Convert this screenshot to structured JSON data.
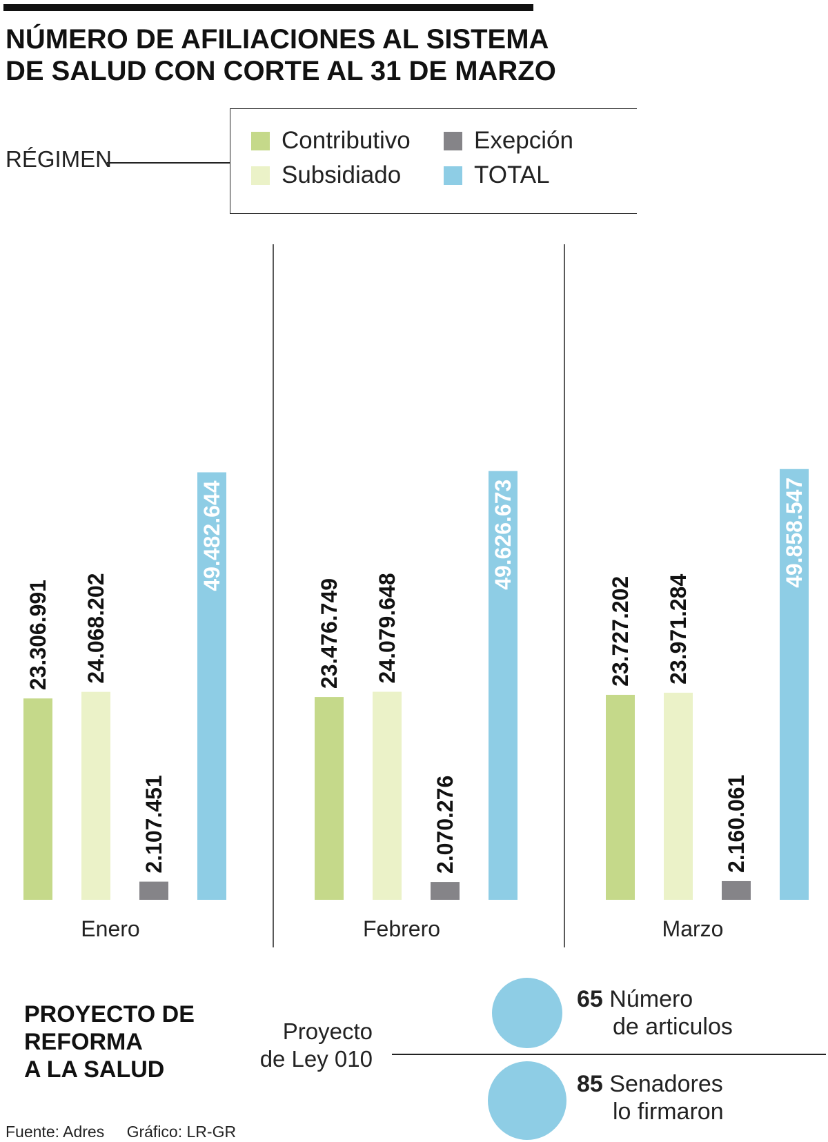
{
  "title_lines": [
    "NÚMERO DE AFILIACIONES AL SISTEMA",
    "DE SALUD CON CORTE AL 31 DE MARZO"
  ],
  "legend_title": "RÉGIMEN",
  "legend": [
    {
      "label": "Contributivo",
      "color": "#c5d98a"
    },
    {
      "label": "Subsidiado",
      "color": "#ebf2c8"
    },
    {
      "label": "Exepción",
      "color": "#858488"
    },
    {
      "label": "TOTAL",
      "color": "#8ecde5"
    }
  ],
  "chart_data": {
    "type": "bar",
    "categories": [
      "Enero",
      "Febrero",
      "Marzo"
    ],
    "series": [
      {
        "name": "Contributivo",
        "color": "#c5d98a",
        "values": [
          23306991,
          23476749,
          23727202
        ],
        "labels": [
          "23.306.991",
          "23.476.749",
          "23.727.202"
        ]
      },
      {
        "name": "Subsidiado",
        "color": "#ebf2c8",
        "values": [
          24068202,
          24079648,
          23971284
        ],
        "labels": [
          "24.068.202",
          "24.079.648",
          "23.971.284"
        ]
      },
      {
        "name": "Exepción",
        "color": "#858488",
        "values": [
          2107451,
          2070276,
          2160061
        ],
        "labels": [
          "2.107.451",
          "2.070.276",
          "2.160.061"
        ]
      },
      {
        "name": "TOTAL",
        "color": "#8ecde5",
        "values": [
          49482644,
          49626673,
          49858547
        ],
        "labels": [
          "49.482.644",
          "49.626.673",
          "49.858.547"
        ]
      }
    ],
    "title": "NÚMERO DE AFILIACIONES AL SISTEMA DE SALUD CON CORTE AL 31 DE MARZO",
    "xlabel": "",
    "ylabel": "",
    "ylim": [
      0,
      50000000
    ],
    "grid": false,
    "legend_position": "top-right"
  },
  "reform": {
    "title_lines": [
      "PROYECTO DE",
      "REFORMA",
      "A LA SALUD"
    ],
    "project_lines": [
      "Proyecto",
      "de Ley 010"
    ],
    "stats": [
      {
        "number": "65",
        "line1": "Número",
        "line2": "de articulos",
        "color": "#8ecde5"
      },
      {
        "number": "85",
        "line1": "Senadores",
        "line2": "lo firmaron",
        "color": "#8ecde5"
      }
    ]
  },
  "footer": {
    "source": "Fuente: Adres",
    "credit": "Gráfico: LR-GR"
  }
}
